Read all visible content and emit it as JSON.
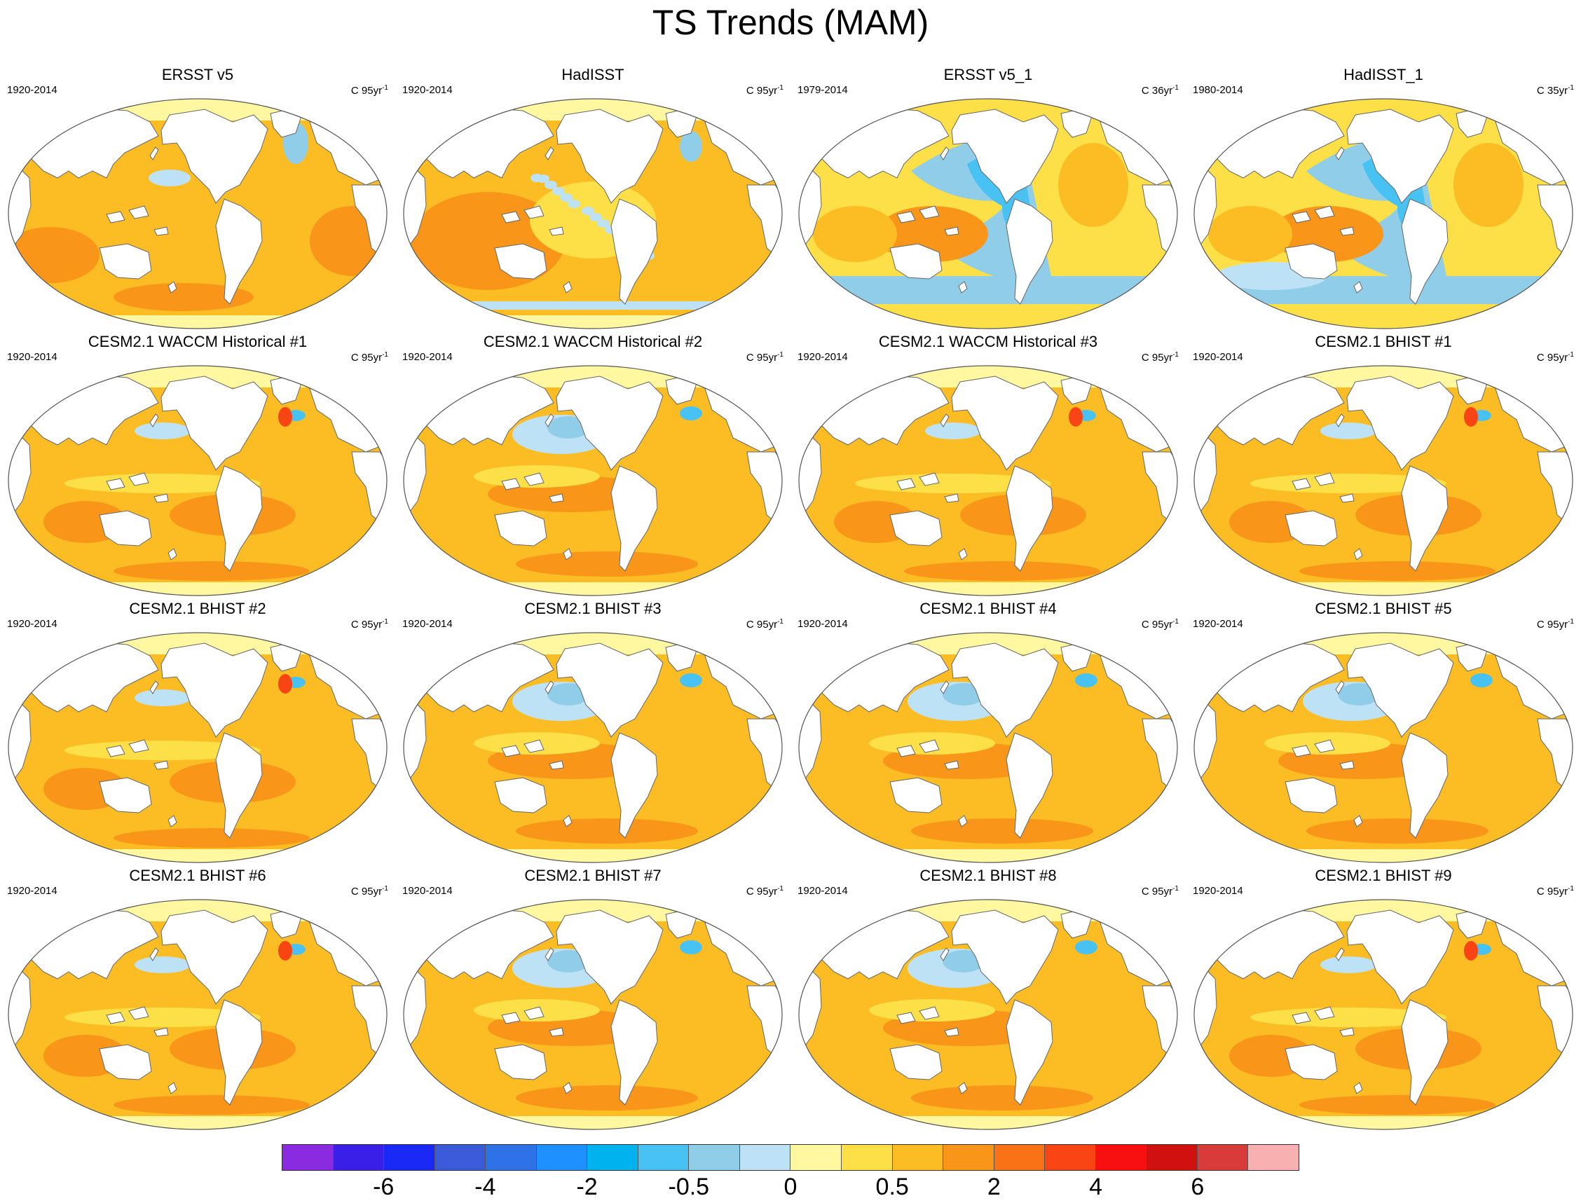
{
  "title": "TS Trends (MAM)",
  "colorbar": {
    "colors": [
      "#8a2be2",
      "#3a1fe8",
      "#1a29f5",
      "#3b5bdb",
      "#2f72e8",
      "#1e90ff",
      "#00b2ee",
      "#48c2f2",
      "#8fcde9",
      "#bde2f5",
      "#fff8a0",
      "#fde047",
      "#fbbd23",
      "#f9961a",
      "#f97316",
      "#f94414",
      "#f81010",
      "#d11010",
      "#d93a3a",
      "#f9b0b0"
    ],
    "labels": [
      {
        "text": "-6",
        "boundary": 2
      },
      {
        "text": "-4",
        "boundary": 4
      },
      {
        "text": "-2",
        "boundary": 6
      },
      {
        "text": "-0.5",
        "boundary": 8
      },
      {
        "text": "0",
        "boundary": 10
      },
      {
        "text": "0.5",
        "boundary": 12
      },
      {
        "text": "2",
        "boundary": 14
      },
      {
        "text": "4",
        "boundary": 16
      },
      {
        "text": "6",
        "boundary": 18
      }
    ]
  },
  "panels": [
    {
      "title": "ERSST v5",
      "period": "1920-2014",
      "units": "C 95yr",
      "sup": "-1",
      "pattern": "warm"
    },
    {
      "title": "HadISST",
      "period": "1920-2014",
      "units": "C 95yr",
      "sup": "-1",
      "pattern": "speckle"
    },
    {
      "title": "ERSST v5_1",
      "period": "1979-2014",
      "units": "C 36yr",
      "sup": "-1",
      "pattern": "lanina"
    },
    {
      "title": "HadISST_1",
      "period": "1980-2014",
      "units": "C 35yr",
      "sup": "-1",
      "pattern": "lanina2"
    },
    {
      "title": "CESM2.1 WACCM Historical #1",
      "period": "1920-2014",
      "units": "C 95yr",
      "sup": "-1",
      "pattern": "model"
    },
    {
      "title": "CESM2.1 WACCM Historical #2",
      "period": "1920-2014",
      "units": "C 95yr",
      "sup": "-1",
      "pattern": "npcool"
    },
    {
      "title": "CESM2.1 WACCM Historical #3",
      "period": "1920-2014",
      "units": "C 95yr",
      "sup": "-1",
      "pattern": "model"
    },
    {
      "title": "CESM2.1 BHIST #1",
      "period": "1920-2014",
      "units": "C 95yr",
      "sup": "-1",
      "pattern": "model"
    },
    {
      "title": "CESM2.1 BHIST #2",
      "period": "1920-2014",
      "units": "C 95yr",
      "sup": "-1",
      "pattern": "model"
    },
    {
      "title": "CESM2.1 BHIST #3",
      "period": "1920-2014",
      "units": "C 95yr",
      "sup": "-1",
      "pattern": "npcool"
    },
    {
      "title": "CESM2.1 BHIST #4",
      "period": "1920-2014",
      "units": "C 95yr",
      "sup": "-1",
      "pattern": "npcool"
    },
    {
      "title": "CESM2.1 BHIST #5",
      "period": "1920-2014",
      "units": "C 95yr",
      "sup": "-1",
      "pattern": "npcool"
    },
    {
      "title": "CESM2.1 BHIST #6",
      "period": "1920-2014",
      "units": "C 95yr",
      "sup": "-1",
      "pattern": "model"
    },
    {
      "title": "CESM2.1 BHIST #7",
      "period": "1920-2014",
      "units": "C 95yr",
      "sup": "-1",
      "pattern": "npcool"
    },
    {
      "title": "CESM2.1 BHIST #8",
      "period": "1920-2014",
      "units": "C 95yr",
      "sup": "-1",
      "pattern": "npcool"
    },
    {
      "title": "CESM2.1 BHIST #9",
      "period": "1920-2014",
      "units": "C 95yr",
      "sup": "-1",
      "pattern": "model"
    }
  ]
}
